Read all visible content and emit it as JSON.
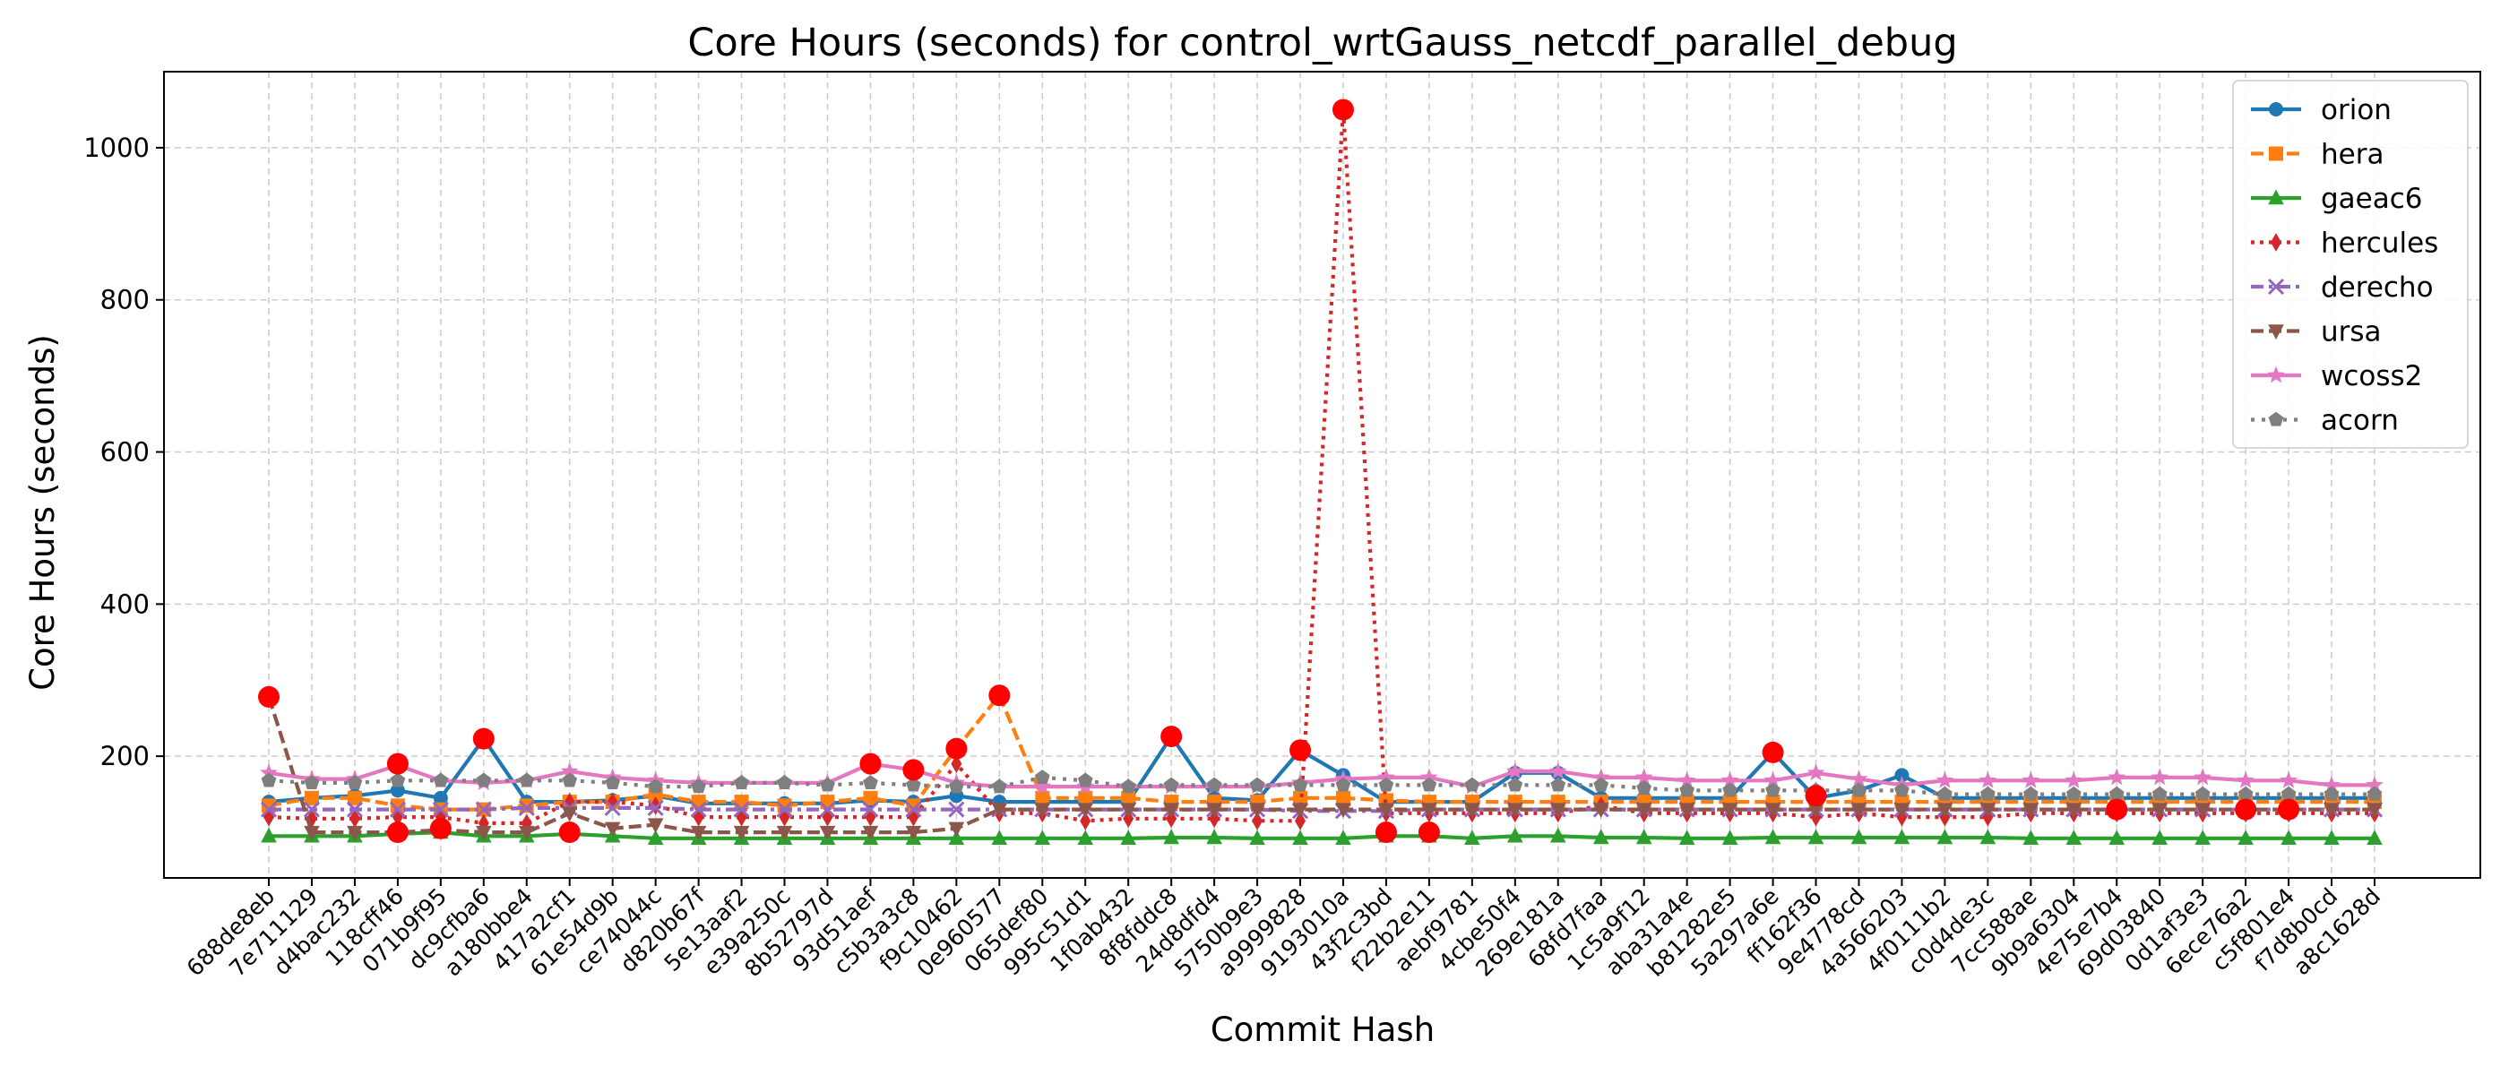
{
  "chart_data": {
    "type": "line",
    "title": "Core Hours (seconds) for control_wrtGauss_netcdf_parallel_debug",
    "xlabel": "Commit Hash",
    "ylabel": "Core Hours (seconds)",
    "ylim": [
      40,
      1100
    ],
    "yticks": [
      200,
      400,
      600,
      800,
      1000
    ],
    "grid": true,
    "legend_position": "top-right",
    "categories": [
      "688de8eb",
      "7e711129",
      "d4bac232",
      "118cff46",
      "071b9f95",
      "dc9cfba6",
      "a180bbe4",
      "417a2cf1",
      "61e54d9b",
      "ce74044c",
      "d820b67f",
      "5e13aaf2",
      "e39a250c",
      "8b52797d",
      "93d51aef",
      "c5b3a3c8",
      "f9c10462",
      "0e960577",
      "065def80",
      "995c51d1",
      "1f0ab432",
      "8f8fddc8",
      "24d8dfd4",
      "5750b9e3",
      "a9999828",
      "9193010a",
      "43f2c3bd",
      "f22b2e11",
      "aebf9781",
      "4cbe50f4",
      "269e181a",
      "68fd7faa",
      "1c5a9f12",
      "aba31a4e",
      "b81282e5",
      "5a297a6e",
      "ff162f36",
      "9e4778cd",
      "4a566203",
      "4f0111b2",
      "c0d4de3c",
      "7cc588ae",
      "9b9a6304",
      "4e75e7b4",
      "69d03840",
      "0d1af3e3",
      "6ece76a2",
      "c5f801e4",
      "f7d8b0cd",
      "a8c1628d"
    ],
    "series": [
      {
        "name": "orion",
        "color": "#1f77b4",
        "dash": "",
        "marker": "circle",
        "values": [
          140,
          145,
          148,
          155,
          145,
          223,
          140,
          140,
          142,
          148,
          138,
          138,
          138,
          138,
          142,
          140,
          148,
          140,
          140,
          140,
          140,
          226,
          145,
          142,
          208,
          175,
          140,
          140,
          140,
          178,
          178,
          145,
          145,
          145,
          145,
          205,
          145,
          155,
          175,
          145,
          145,
          145,
          145,
          145,
          145,
          145,
          145,
          145,
          145,
          145
        ]
      },
      {
        "name": "hera",
        "color": "#ff7f0e",
        "dash": "14,6",
        "marker": "square",
        "values": [
          135,
          145,
          145,
          135,
          130,
          130,
          135,
          140,
          140,
          150,
          140,
          140,
          135,
          140,
          145,
          135,
          210,
          280,
          145,
          145,
          145,
          140,
          140,
          140,
          145,
          145,
          142,
          140,
          140,
          140,
          140,
          140,
          140,
          140,
          140,
          140,
          140,
          140,
          140,
          140,
          140,
          140,
          140,
          140,
          140,
          140,
          140,
          140,
          140,
          140
        ]
      },
      {
        "name": "gaeac6",
        "color": "#2ca02c",
        "dash": "",
        "marker": "triangle-up",
        "values": [
          95,
          95,
          95,
          98,
          100,
          95,
          95,
          98,
          95,
          92,
          92,
          92,
          92,
          92,
          92,
          92,
          92,
          92,
          92,
          92,
          92,
          93,
          93,
          92,
          92,
          92,
          95,
          95,
          92,
          95,
          95,
          93,
          93,
          92,
          92,
          93,
          93,
          93,
          93,
          93,
          93,
          92,
          92,
          92,
          92,
          92,
          92,
          92,
          92,
          92
        ]
      },
      {
        "name": "hercules",
        "color": "#d62728",
        "dash": "4,6",
        "marker": "diamond",
        "values": [
          120,
          118,
          118,
          120,
          120,
          112,
          112,
          140,
          140,
          135,
          120,
          120,
          120,
          120,
          120,
          120,
          190,
          125,
          125,
          115,
          118,
          118,
          118,
          115,
          115,
          1050,
          125,
          125,
          125,
          125,
          125,
          135,
          125,
          125,
          125,
          125,
          120,
          125,
          120,
          120,
          120,
          125,
          125,
          125,
          125,
          125,
          125,
          125,
          125,
          125
        ]
      },
      {
        "name": "derecho",
        "color": "#9467bd",
        "dash": "14,6,4,6",
        "marker": "x",
        "values": [
          130,
          130,
          130,
          130,
          130,
          130,
          132,
          132,
          132,
          132,
          130,
          130,
          130,
          130,
          130,
          130,
          130,
          130,
          130,
          130,
          130,
          130,
          130,
          130,
          128,
          128,
          128,
          130,
          130,
          130,
          130,
          130,
          130,
          130,
          130,
          130,
          130,
          130,
          130,
          130,
          130,
          130,
          130,
          130,
          130,
          130,
          130,
          130,
          130,
          130
        ]
      },
      {
        "name": "ursa",
        "color": "#8c564b",
        "dash": "14,6",
        "marker": "triangle-down",
        "values": [
          278,
          100,
          100,
          100,
          103,
          100,
          100,
          125,
          105,
          110,
          100,
          100,
          100,
          100,
          100,
          100,
          105,
          130,
          130,
          130,
          130,
          130,
          130,
          130,
          130,
          130,
          130,
          130,
          130,
          130,
          130,
          130,
          130,
          130,
          130,
          130,
          130,
          130,
          130,
          130,
          130,
          130,
          130,
          130,
          130,
          130,
          130,
          130,
          130,
          130
        ]
      },
      {
        "name": "wcoss2",
        "color": "#e377c2",
        "dash": "",
        "marker": "star",
        "values": [
          178,
          170,
          170,
          188,
          168,
          165,
          168,
          180,
          172,
          168,
          165,
          165,
          165,
          165,
          190,
          182,
          165,
          160,
          160,
          160,
          160,
          160,
          160,
          160,
          165,
          170,
          172,
          172,
          160,
          180,
          180,
          172,
          172,
          168,
          168,
          168,
          178,
          170,
          162,
          168,
          168,
          168,
          168,
          172,
          172,
          172,
          168,
          168,
          162,
          162
        ]
      },
      {
        "name": "acorn",
        "color": "#7f7f7f",
        "dash": "4,8",
        "marker": "pentagon",
        "values": [
          168,
          165,
          165,
          168,
          168,
          168,
          168,
          168,
          165,
          160,
          160,
          165,
          165,
          162,
          165,
          162,
          160,
          160,
          172,
          168,
          160,
          162,
          162,
          162,
          162,
          162,
          162,
          162,
          162,
          162,
          162,
          162,
          158,
          155,
          155,
          155,
          155,
          155,
          155,
          150,
          150,
          150,
          150,
          150,
          150,
          150,
          150,
          150,
          150,
          150
        ]
      }
    ],
    "outliers": [
      {
        "x": "688de8eb",
        "y": 278
      },
      {
        "x": "118cff46",
        "y": 100
      },
      {
        "x": "118cff46",
        "y": 190
      },
      {
        "x": "071b9f95",
        "y": 105
      },
      {
        "x": "dc9cfba6",
        "y": 223
      },
      {
        "x": "417a2cf1",
        "y": 100
      },
      {
        "x": "93d51aef",
        "y": 190
      },
      {
        "x": "c5b3a3c8",
        "y": 182
      },
      {
        "x": "f9c10462",
        "y": 210
      },
      {
        "x": "0e960577",
        "y": 280
      },
      {
        "x": "8f8fddc8",
        "y": 226
      },
      {
        "x": "a9999828",
        "y": 208
      },
      {
        "x": "9193010a",
        "y": 1050
      },
      {
        "x": "43f2c3bd",
        "y": 100
      },
      {
        "x": "f22b2e11",
        "y": 100
      },
      {
        "x": "5a297a6e",
        "y": 205
      },
      {
        "x": "ff162f36",
        "y": 148
      },
      {
        "x": "4e75e7b4",
        "y": 130
      },
      {
        "x": "6ece76a2",
        "y": 130
      },
      {
        "x": "c5f801e4",
        "y": 130
      }
    ],
    "outlier_color": "#ff0000"
  }
}
